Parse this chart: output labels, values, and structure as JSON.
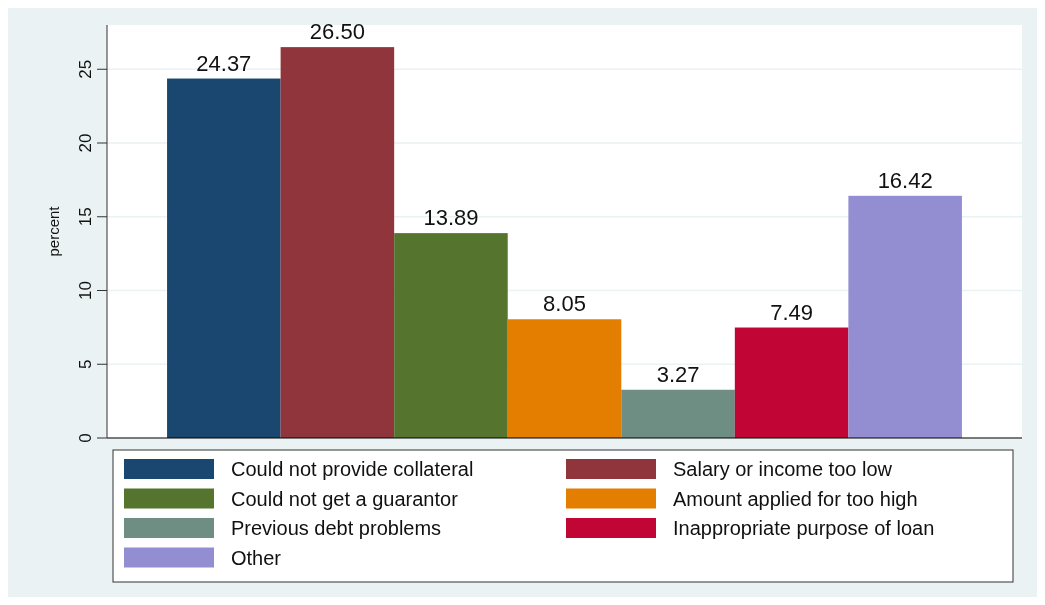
{
  "chart_data": {
    "type": "bar",
    "ylabel": "percent",
    "categories": [
      null
    ],
    "series": [
      {
        "name": "Could not provide collateral",
        "color": "#1a476f",
        "values": [
          24.37
        ],
        "value_labels": [
          "24.37"
        ]
      },
      {
        "name": "Salary or income too low",
        "color": "#90353b",
        "values": [
          26.5
        ],
        "value_labels": [
          "26.50"
        ]
      },
      {
        "name": "Could not get a guarantor",
        "color": "#55752f",
        "values": [
          13.89
        ],
        "value_labels": [
          "13.89"
        ]
      },
      {
        "name": "Amount applied for too high",
        "color": "#e37e00",
        "values": [
          8.05
        ],
        "value_labels": [
          "8.05"
        ]
      },
      {
        "name": "Previous debt problems",
        "color": "#6e8e84",
        "values": [
          3.27
        ],
        "value_labels": [
          "3.27"
        ]
      },
      {
        "name": "Inappropriate purpose of loan",
        "color": "#c10534",
        "values": [
          7.49
        ],
        "value_labels": [
          "7.49"
        ]
      },
      {
        "name": "Other",
        "color": "#938dd2",
        "values": [
          16.42
        ],
        "value_labels": [
          "16.42"
        ]
      }
    ],
    "ylim": [
      0,
      28
    ],
    "yticks": [
      0,
      5,
      10,
      15,
      20,
      25
    ],
    "grid": "y",
    "legend": "bottom"
  }
}
